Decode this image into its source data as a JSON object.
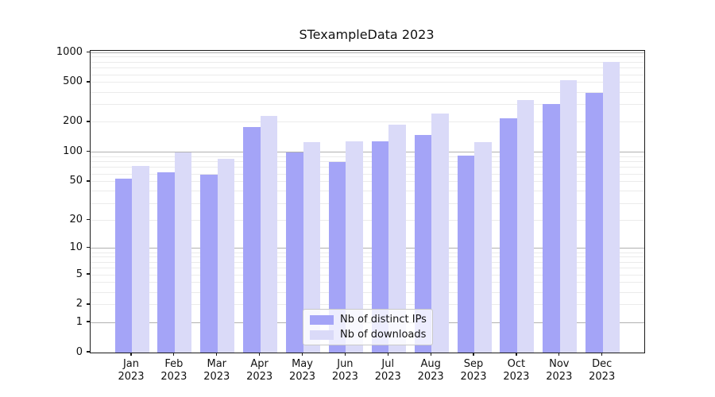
{
  "chart_data": {
    "type": "bar",
    "title": "STexampleData 2023",
    "categories": [
      {
        "month": "Jan",
        "year": "2023"
      },
      {
        "month": "Feb",
        "year": "2023"
      },
      {
        "month": "Mar",
        "year": "2023"
      },
      {
        "month": "Apr",
        "year": "2023"
      },
      {
        "month": "May",
        "year": "2023"
      },
      {
        "month": "Jun",
        "year": "2023"
      },
      {
        "month": "Jul",
        "year": "2023"
      },
      {
        "month": "Aug",
        "year": "2023"
      },
      {
        "month": "Sep",
        "year": "2023"
      },
      {
        "month": "Oct",
        "year": "2023"
      },
      {
        "month": "Nov",
        "year": "2023"
      },
      {
        "month": "Dec",
        "year": "2023"
      }
    ],
    "series": [
      {
        "name": "Nb of distinct IPs",
        "color": "#a4a4f7",
        "values": [
          54,
          62,
          59,
          178,
          100,
          80,
          128,
          150,
          93,
          220,
          305,
          395
        ]
      },
      {
        "name": "Nb of downloads",
        "color": "#dadaf8",
        "values": [
          72,
          100,
          85,
          232,
          125,
          128,
          190,
          245,
          125,
          335,
          530,
          800
        ]
      }
    ],
    "ytick_labels": [
      "0",
      "1",
      "2",
      "5",
      "10",
      "20",
      "50",
      "100",
      "200",
      "500",
      "1000"
    ],
    "yscale": "symlog (log1p)",
    "ylim": [
      0,
      1040
    ],
    "xlabel": "",
    "ylabel": "",
    "grid": "horizontal; major lines at powers of 10, faint minor log subdivisions",
    "legend": {
      "position": "lower center inside plot"
    }
  },
  "colors": {
    "bar_dark": "#a4a4f7",
    "bar_light": "#dadaf8",
    "grid_major": "#b0b0b0",
    "grid_minor": "#ebebeb",
    "spine": "#1a1a1a",
    "text": "#111111"
  }
}
